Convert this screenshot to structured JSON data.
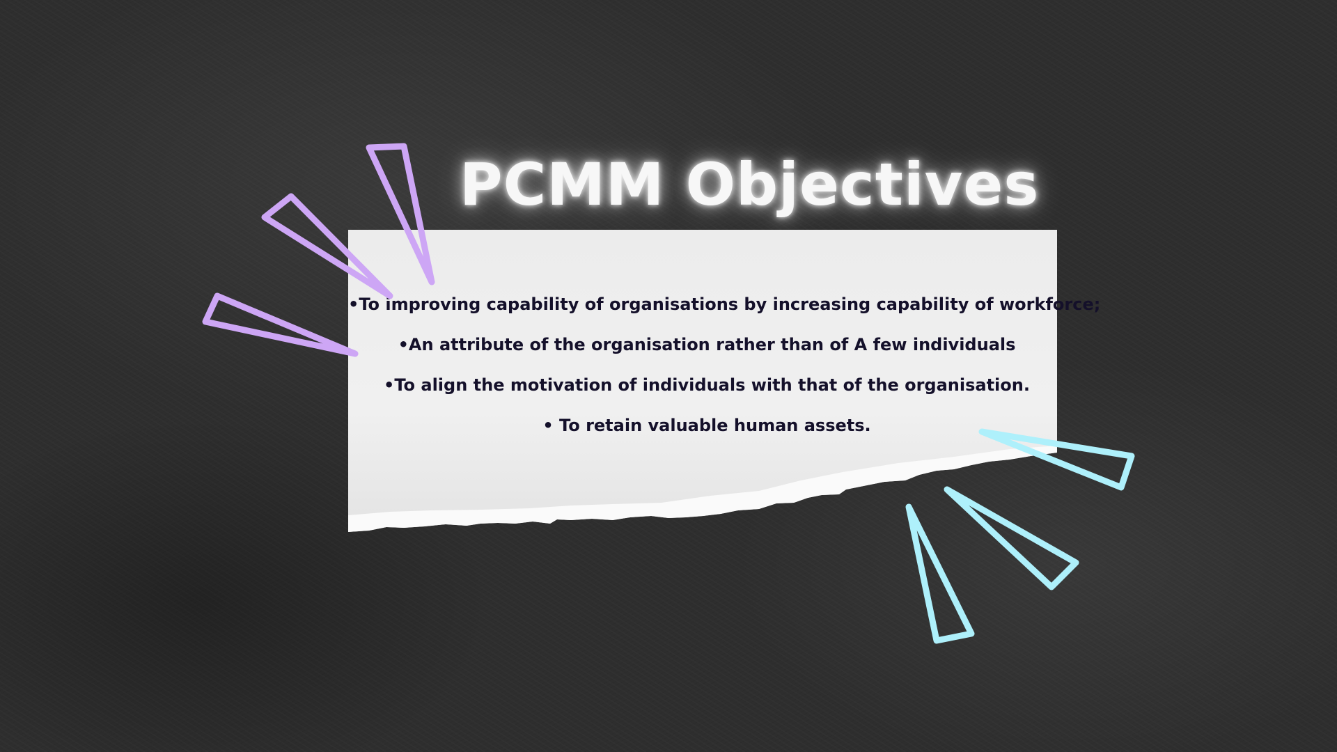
{
  "slide": {
    "title": "PCMM Objectives",
    "objectives": [
      "•To improving capability of organisations by increasing capability of workforce;",
      "•An attribute of the organisation rather than of A few individuals",
      "•To align the motivation of individuals with that of the organisation.",
      "• To retain valuable human assets."
    ]
  },
  "colors": {
    "background": "#2e2e2e",
    "paper": "#eeeeee",
    "title": "#f7f7f7",
    "text": "#14102a",
    "accent_purple": "#cda6f5",
    "accent_cyan": "#aef0fb"
  },
  "decorations": {
    "top_left": "purple-triangle-burst-icon",
    "bottom_right": "cyan-triangle-burst-icon"
  }
}
